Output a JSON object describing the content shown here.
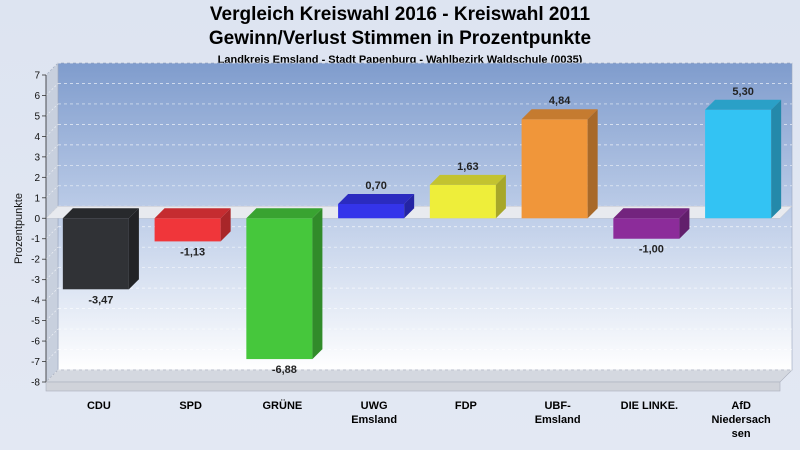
{
  "chart_data": {
    "type": "bar",
    "title": "Vergleich Kreiswahl 2016 - Kreiswahl 2011",
    "subtitle": "Gewinn/Verlust Stimmen in Prozentpunkte",
    "caption": "Landkreis Emsland - Stadt Papenburg - Wahlbezirk Waldschule (0035)",
    "ylabel": "Prozentpunkte",
    "xlabel": "",
    "ylim": [
      -8,
      7
    ],
    "yticks": [
      7,
      6,
      5,
      4,
      3,
      2,
      1,
      0,
      -1,
      -2,
      -3,
      -4,
      -5,
      -6,
      -7,
      -8
    ],
    "grid": true,
    "categories": [
      [
        "CDU"
      ],
      [
        "SPD"
      ],
      [
        "GRÜNE"
      ],
      [
        "UWG",
        "Emsland"
      ],
      [
        "FDP"
      ],
      [
        "UBF-",
        "Emsland"
      ],
      [
        "DIE LINKE."
      ],
      [
        "AfD",
        "Niedersach",
        "sen"
      ]
    ],
    "values": [
      -3.47,
      -1.13,
      -6.88,
      0.7,
      1.63,
      4.84,
      -1.0,
      5.3
    ],
    "value_labels": [
      "-3,47",
      "-1,13",
      "-6,88",
      "0,70",
      "1,63",
      "4,84",
      "-1,00",
      "5,30"
    ],
    "colors": [
      "#303236",
      "#f0363a",
      "#46c73c",
      "#3434ea",
      "#eeee3a",
      "#f0963a",
      "#8c2c9a",
      "#33c3f3"
    ]
  }
}
